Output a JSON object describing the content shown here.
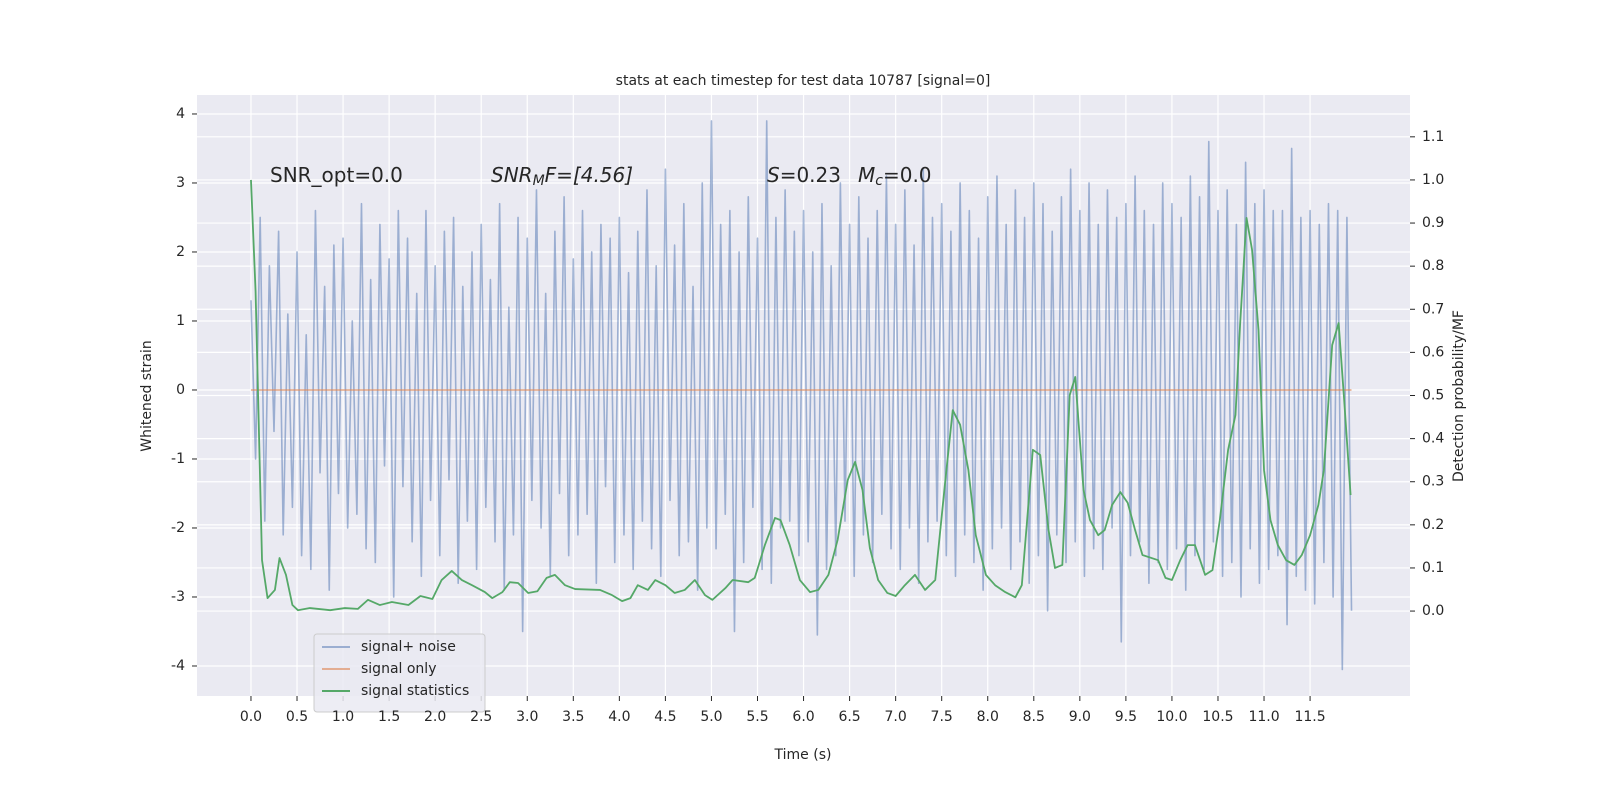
{
  "chart_data": {
    "type": "line",
    "title": "stats at each timestep for test data 10787 [signal=0]",
    "xlabel": "Time (s)",
    "ylabel": "Whitened strain",
    "y2label": "Detection probability/MF",
    "annotations": [
      "SNR_opt=0.0",
      "SNR",
      "M",
      "F=[4.56]",
      "S",
      "=0.23",
      "M",
      "c",
      "=0.0"
    ],
    "xlim": [
      -0.586,
      12.585
    ],
    "ylim": [
      -4.435,
      4.275
    ],
    "y2lim": [
      -0.197,
      1.197
    ],
    "xticks": [
      {
        "value": 0,
        "label": "0.0"
      },
      0.5,
      {
        "value": 1,
        "label": "1.0"
      },
      1.5,
      {
        "value": 2,
        "label": "2.0"
      },
      2.5,
      {
        "value": 3,
        "label": "3.0"
      },
      3.5,
      {
        "value": 4,
        "label": "4.0"
      },
      4.5,
      {
        "value": 5,
        "label": "5.0"
      },
      5.5,
      {
        "value": 6,
        "label": "6.0"
      },
      6.5,
      {
        "value": 7,
        "label": "7.0"
      },
      7.5,
      {
        "value": 8,
        "label": "8.0"
      },
      8.5,
      {
        "value": 9,
        "label": "9.0"
      },
      9.5,
      {
        "value": 10,
        "label": "10.0"
      },
      10.5,
      {
        "value": 11,
        "label": "11.0"
      },
      11.5
    ],
    "yticks": [
      -4,
      -3,
      -2,
      -1,
      0,
      1,
      2,
      3,
      4
    ],
    "y2ticks": [
      {
        "value": 0,
        "label": "0.0"
      },
      0.1,
      0.2,
      0.3,
      0.4,
      0.5,
      0.6,
      0.7,
      0.8,
      0.9,
      {
        "value": 1,
        "label": "1.0"
      },
      1.1
    ],
    "grid": true,
    "legend": "lower left",
    "series": [
      {
        "name": "signal+ noise",
        "color": "#4c72b0",
        "x": [
          0,
          0.05,
          0.1,
          0.15,
          0.2,
          0.25,
          0.3,
          0.35,
          0.4,
          0.45,
          0.5,
          0.55,
          0.6,
          0.65,
          0.7,
          0.75,
          0.8,
          0.85,
          0.9,
          0.95,
          1,
          1.05,
          1.1,
          1.15,
          1.2,
          1.25,
          1.3,
          1.35,
          1.4,
          1.45,
          1.5,
          1.55,
          1.6,
          1.65,
          1.7,
          1.75,
          1.8,
          1.85,
          1.9,
          1.95,
          2,
          2.05,
          2.1,
          2.15,
          2.2,
          2.25,
          2.3,
          2.35,
          2.4,
          2.45,
          2.5,
          2.55,
          2.6,
          2.65,
          2.7,
          2.75,
          2.8,
          2.85,
          2.9,
          2.95,
          3,
          3.05,
          3.1,
          3.15,
          3.2,
          3.25,
          3.3,
          3.35,
          3.4,
          3.45,
          3.5,
          3.55,
          3.6,
          3.65,
          3.7,
          3.75,
          3.8,
          3.85,
          3.9,
          3.95,
          4,
          4.05,
          4.1,
          4.15,
          4.2,
          4.25,
          4.3,
          4.35,
          4.4,
          4.45,
          4.5,
          4.55,
          4.6,
          4.65,
          4.7,
          4.75,
          4.8,
          4.85,
          4.9,
          4.95,
          5,
          5.05,
          5.1,
          5.15,
          5.2,
          5.25,
          5.3,
          5.35,
          5.4,
          5.45,
          5.5,
          5.55,
          5.6,
          5.65,
          5.7,
          5.75,
          5.8,
          5.85,
          5.9,
          5.95,
          6,
          6.05,
          6.1,
          6.15,
          6.2,
          6.25,
          6.3,
          6.35,
          6.4,
          6.45,
          6.5,
          6.55,
          6.6,
          6.65,
          6.7,
          6.75,
          6.8,
          6.85,
          6.9,
          6.95,
          7,
          7.05,
          7.1,
          7.15,
          7.2,
          7.25,
          7.3,
          7.35,
          7.4,
          7.45,
          7.5,
          7.55,
          7.6,
          7.65,
          7.7,
          7.75,
          7.8,
          7.85,
          7.9,
          7.95,
          8,
          8.05,
          8.1,
          8.15,
          8.2,
          8.25,
          8.3,
          8.35,
          8.4,
          8.45,
          8.5,
          8.55,
          8.6,
          8.65,
          8.7,
          8.75,
          8.8,
          8.85,
          8.9,
          8.95,
          9,
          9.05,
          9.1,
          9.15,
          9.2,
          9.25,
          9.3,
          9.35,
          9.4,
          9.45,
          9.5,
          9.55,
          9.6,
          9.65,
          9.7,
          9.75,
          9.8,
          9.85,
          9.9,
          9.95,
          10,
          10.05,
          10.1,
          10.15,
          10.2,
          10.25,
          10.3,
          10.35,
          10.4,
          10.45,
          10.5,
          10.55,
          10.6,
          10.65,
          10.7,
          10.75,
          10.8,
          10.85,
          10.9,
          10.95,
          11,
          11.05,
          11.1,
          11.15,
          11.2,
          11.25,
          11.3,
          11.35,
          11.4,
          11.45,
          11.5,
          11.55,
          11.6,
          11.65,
          11.7,
          11.75,
          11.8,
          11.85,
          11.9,
          11.95
        ],
        "values": [
          1.3,
          -1.0,
          2.5,
          -1.9,
          1.8,
          -0.6,
          2.3,
          -2.1,
          1.1,
          -1.7,
          2.0,
          -2.4,
          0.8,
          -2.6,
          2.6,
          -1.2,
          1.5,
          -2.9,
          2.1,
          -1.5,
          2.2,
          -2.0,
          1.0,
          -1.8,
          2.7,
          -2.3,
          1.6,
          -2.5,
          2.4,
          -1.1,
          1.9,
          -3.0,
          2.6,
          -1.4,
          2.2,
          -2.2,
          1.4,
          -2.7,
          2.6,
          -1.6,
          1.8,
          -2.4,
          2.3,
          -1.3,
          2.5,
          -2.8,
          1.5,
          -1.9,
          2.0,
          -2.6,
          2.4,
          -1.7,
          1.6,
          -2.2,
          2.7,
          -2.9,
          1.2,
          -2.1,
          2.5,
          -3.5,
          2.2,
          -1.6,
          2.9,
          -2.0,
          1.4,
          -2.7,
          2.3,
          -1.5,
          2.8,
          -2.4,
          1.9,
          -2.1,
          2.6,
          -1.8,
          2.0,
          -2.8,
          2.4,
          -1.4,
          2.2,
          -2.5,
          2.5,
          -2.1,
          1.7,
          -2.6,
          2.3,
          -1.9,
          2.9,
          -2.3,
          1.8,
          -2.7,
          3.2,
          -1.6,
          2.1,
          -2.4,
          2.7,
          -2.2,
          1.5,
          -2.9,
          3.0,
          -2.0,
          3.9,
          -2.3,
          2.4,
          -1.8,
          2.6,
          -3.5,
          2.0,
          -2.5,
          2.8,
          -1.7,
          2.2,
          -2.6,
          3.9,
          -2.8,
          2.5,
          -2.0,
          2.9,
          -1.9,
          2.3,
          -2.4,
          2.6,
          -2.2,
          2.0,
          -3.55,
          2.7,
          -2.6,
          1.8,
          -2.4,
          3.0,
          -1.9,
          2.4,
          -2.7,
          2.8,
          -2.1,
          2.2,
          -2.5,
          2.6,
          -1.8,
          3.1,
          -2.3,
          2.4,
          -2.6,
          2.9,
          -2.0,
          2.1,
          -2.8,
          3.2,
          -2.2,
          2.5,
          -1.9,
          2.7,
          -2.4,
          2.3,
          -2.7,
          3.0,
          -2.1,
          2.6,
          -2.5,
          2.2,
          -2.9,
          2.8,
          -2.3,
          3.1,
          -2.0,
          2.4,
          -2.6,
          2.9,
          -2.2,
          2.5,
          -2.8,
          3.0,
          -2.4,
          2.7,
          -3.2,
          2.3,
          -2.1,
          2.8,
          -2.5,
          3.2,
          -2.2,
          2.6,
          -2.7,
          3.0,
          -2.3,
          2.4,
          -2.6,
          2.9,
          -2.0,
          2.5,
          -3.65,
          2.7,
          -2.4,
          3.1,
          -2.2,
          2.6,
          -2.8,
          2.4,
          -2.5,
          3.0,
          -2.6,
          2.7,
          -2.3,
          2.5,
          -2.9,
          3.1,
          -2.4,
          2.8,
          -2.6,
          3.6,
          -2.2,
          2.6,
          -2.7,
          2.9,
          -2.5,
          2.4,
          -3.0,
          3.3,
          -2.3,
          2.7,
          -2.8,
          2.9,
          -2.6,
          2.6,
          -2.4,
          2.6,
          -3.4,
          3.5,
          -2.7,
          2.5,
          -2.9,
          2.6,
          -3.1,
          2.4,
          -2.5,
          2.7,
          -3.0,
          2.6,
          -4.05,
          2.5,
          -3.2
        ]
      },
      {
        "name": "signal only",
        "color": "#dd8452",
        "x": [
          0,
          11.95
        ],
        "values": [
          0,
          0
        ]
      },
      {
        "name": "signal statistics",
        "color": "#55a868",
        "axis": "y2",
        "x": [
          0,
          0.05,
          0.12,
          0.18,
          0.26,
          0.31,
          0.38,
          0.45,
          0.51,
          0.64,
          0.86,
          1.02,
          1.16,
          1.27,
          1.4,
          1.53,
          1.71,
          1.84,
          1.97,
          2.07,
          2.18,
          2.29,
          2.4,
          2.54,
          2.62,
          2.73,
          2.81,
          2.9,
          3.01,
          3.11,
          3.21,
          3.3,
          3.41,
          3.52,
          3.79,
          3.92,
          4.03,
          4.12,
          4.2,
          4.31,
          4.39,
          4.5,
          4.6,
          4.71,
          4.82,
          4.93,
          5.01,
          5.15,
          5.23,
          5.4,
          5.47,
          5.58,
          5.69,
          5.75,
          5.85,
          5.96,
          6.07,
          6.16,
          6.27,
          6.37,
          6.48,
          6.56,
          6.64,
          6.72,
          6.81,
          6.91,
          7,
          7.1,
          7.21,
          7.32,
          7.43,
          7.54,
          7.62,
          7.7,
          7.79,
          7.87,
          7.98,
          8.08,
          8.19,
          8.3,
          8.37,
          8.49,
          8.57,
          8.66,
          8.73,
          8.81,
          8.89,
          8.95,
          9.04,
          9.11,
          9.2,
          9.27,
          9.35,
          9.44,
          9.52,
          9.6,
          9.68,
          9.85,
          9.93,
          10,
          10.09,
          10.17,
          10.25,
          10.36,
          10.44,
          10.52,
          10.61,
          10.69,
          10.74,
          10.81,
          10.87,
          10.94,
          11,
          11.07,
          11.15,
          11.24,
          11.33,
          11.41,
          11.5,
          11.59,
          11.65,
          11.74,
          11.81,
          11.87,
          11.94
        ],
        "values": [
          1.0,
          0.742,
          0.118,
          0.03,
          0.049,
          0.123,
          0.084,
          0.014,
          0.002,
          0.007,
          0.002,
          0.007,
          0.005,
          0.026,
          0.014,
          0.021,
          0.014,
          0.035,
          0.028,
          0.072,
          0.093,
          0.072,
          0.06,
          0.044,
          0.03,
          0.044,
          0.067,
          0.065,
          0.042,
          0.046,
          0.077,
          0.084,
          0.06,
          0.051,
          0.049,
          0.037,
          0.023,
          0.03,
          0.06,
          0.049,
          0.072,
          0.06,
          0.042,
          0.049,
          0.072,
          0.037,
          0.026,
          0.053,
          0.072,
          0.067,
          0.077,
          0.153,
          0.216,
          0.211,
          0.153,
          0.072,
          0.044,
          0.049,
          0.084,
          0.165,
          0.304,
          0.346,
          0.281,
          0.146,
          0.072,
          0.042,
          0.035,
          0.06,
          0.084,
          0.049,
          0.072,
          0.304,
          0.466,
          0.432,
          0.327,
          0.176,
          0.084,
          0.06,
          0.044,
          0.032,
          0.06,
          0.374,
          0.362,
          0.188,
          0.1,
          0.107,
          0.501,
          0.543,
          0.281,
          0.211,
          0.176,
          0.188,
          0.246,
          0.276,
          0.251,
          0.188,
          0.13,
          0.118,
          0.077,
          0.072,
          0.118,
          0.153,
          0.153,
          0.084,
          0.095,
          0.211,
          0.374,
          0.455,
          0.664,
          0.912,
          0.838,
          0.652,
          0.327,
          0.211,
          0.153,
          0.118,
          0.107,
          0.13,
          0.176,
          0.246,
          0.327,
          0.617,
          0.668,
          0.49,
          0.269
        ]
      }
    ]
  }
}
